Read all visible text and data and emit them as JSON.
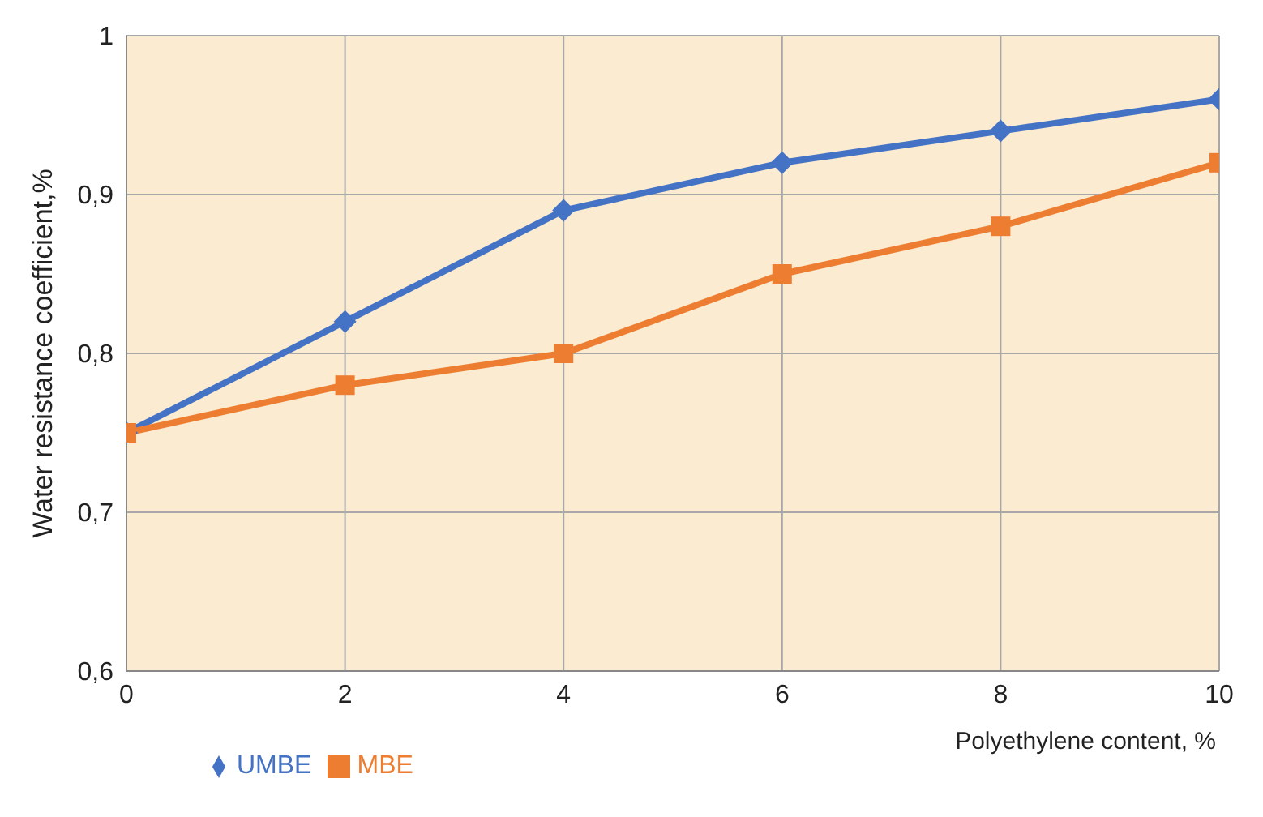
{
  "chart_data": {
    "type": "line",
    "xlabel": "Polyethylene content, %",
    "ylabel": "Water resistance coefficient,%",
    "x": [
      0,
      2,
      4,
      6,
      8,
      10
    ],
    "series": [
      {
        "name": "UMBE",
        "color": "#4472c4",
        "marker": "diamond",
        "values": [
          0.75,
          0.82,
          0.89,
          0.92,
          0.94,
          0.96
        ]
      },
      {
        "name": "MBE",
        "color": "#ed7d31",
        "marker": "square",
        "values": [
          0.75,
          0.78,
          0.8,
          0.85,
          0.88,
          0.92
        ]
      }
    ],
    "xlim": [
      0,
      10
    ],
    "xticks": [
      0,
      2,
      4,
      6,
      8,
      10
    ],
    "ylim": [
      0.6,
      1
    ],
    "yticks": [
      {
        "value": 0.6,
        "label": "0,6"
      },
      {
        "value": 0.7,
        "label": "0,7"
      },
      {
        "value": 0.8,
        "label": "0,8"
      },
      {
        "value": 0.9,
        "label": "0,9"
      },
      {
        "value": 1,
        "label": "1"
      }
    ],
    "grid": true,
    "legend": "bottom left",
    "line_style": "solid"
  }
}
